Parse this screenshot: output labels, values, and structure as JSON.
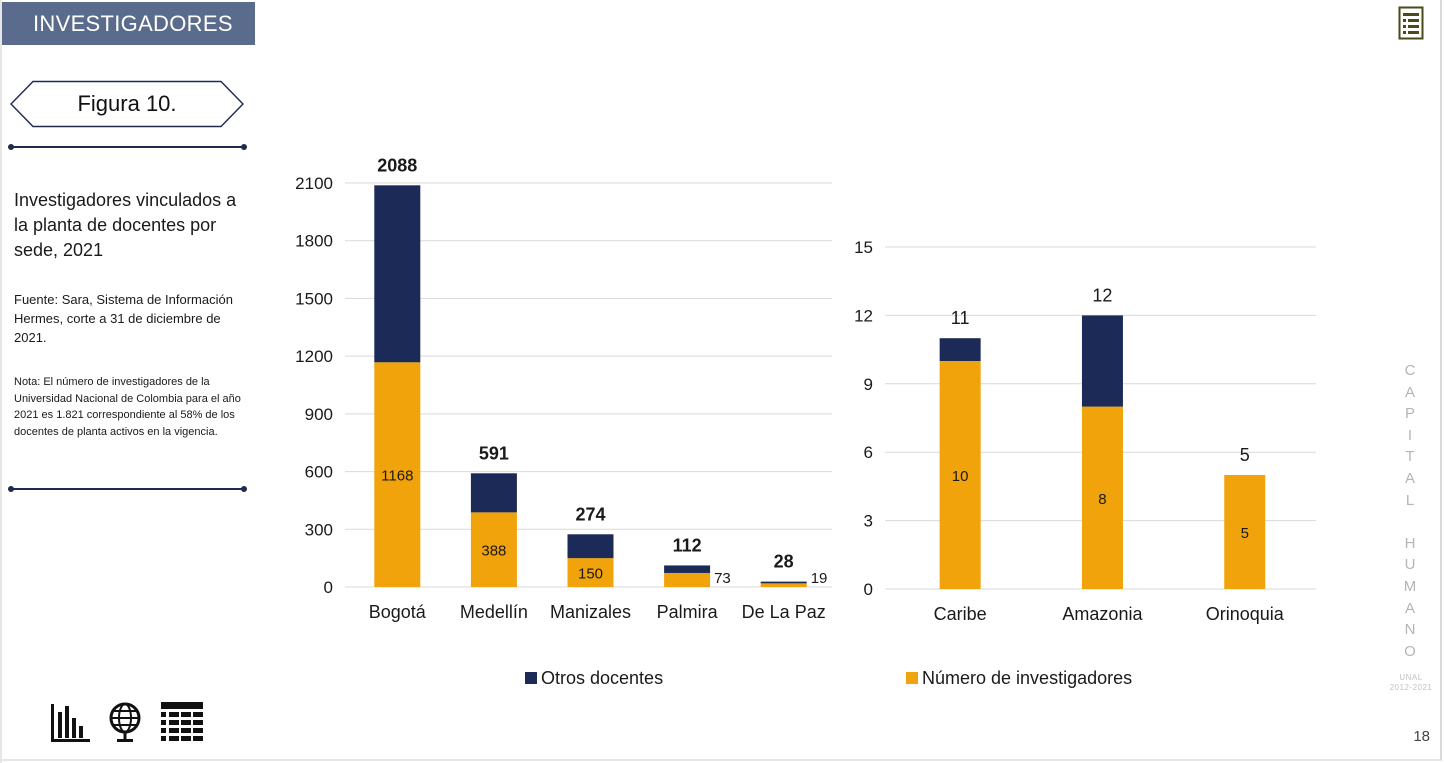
{
  "header": {
    "section": "INVESTIGADORES"
  },
  "figure": {
    "label": "Figura 10.",
    "title": "Investigadores vinculados a la planta de docentes por sede, 2021",
    "source": "Fuente: Sara, Sistema de Información Hermes, corte a 31 de diciembre de 2021.",
    "note": "Nota: El número de investigadores de la Universidad Nacional de Colombia para el año 2021 es 1.821 correspondiente al 58% de los docentes de planta activos en la vigencia."
  },
  "colors": {
    "investigadores": "#f0a30a",
    "otros": "#1c2a57",
    "banner": "#5b6b8c",
    "gridline": "#d9d9d9"
  },
  "chart_data": [
    {
      "type": "bar",
      "stacked": true,
      "categories": [
        "Bogotá",
        "Medellín",
        "Manizales",
        "Palmira",
        "De La Paz"
      ],
      "series": [
        {
          "name": "Número de investigadores",
          "values": [
            1168,
            388,
            150,
            73,
            19
          ]
        },
        {
          "name": "Otros docentes",
          "values": [
            920,
            203,
            124,
            39,
            9
          ]
        }
      ],
      "totals": [
        2088,
        591,
        274,
        112,
        28
      ],
      "yticks": [
        0,
        300,
        600,
        900,
        1200,
        1500,
        1800,
        2100
      ],
      "ylim": [
        0,
        2100
      ],
      "grid": true
    },
    {
      "type": "bar",
      "stacked": true,
      "categories": [
        "Caribe",
        "Amazonia",
        "Orinoquia"
      ],
      "series": [
        {
          "name": "Número de investigadores",
          "values": [
            10,
            8,
            5
          ]
        },
        {
          "name": "Otros docentes",
          "values": [
            1,
            4,
            0
          ]
        }
      ],
      "totals": [
        11,
        12,
        5
      ],
      "yticks": [
        0,
        3,
        6,
        9,
        12,
        15
      ],
      "ylim": [
        0,
        15
      ],
      "grid": true
    }
  ],
  "legend": {
    "items": [
      {
        "label": "Otros docentes",
        "color": "#1c2a57"
      },
      {
        "label": "Número de investigadores",
        "color": "#f0a30a"
      }
    ],
    "placement": "bottom"
  },
  "side": {
    "word": "CAPITAL HUMANO",
    "brand": "UNAL",
    "years": "2012-2021"
  },
  "page_number": "18",
  "icons": {
    "corner": "document-list-icon",
    "bottom": [
      "bar-chart-icon",
      "globe-icon",
      "table-icon"
    ]
  }
}
